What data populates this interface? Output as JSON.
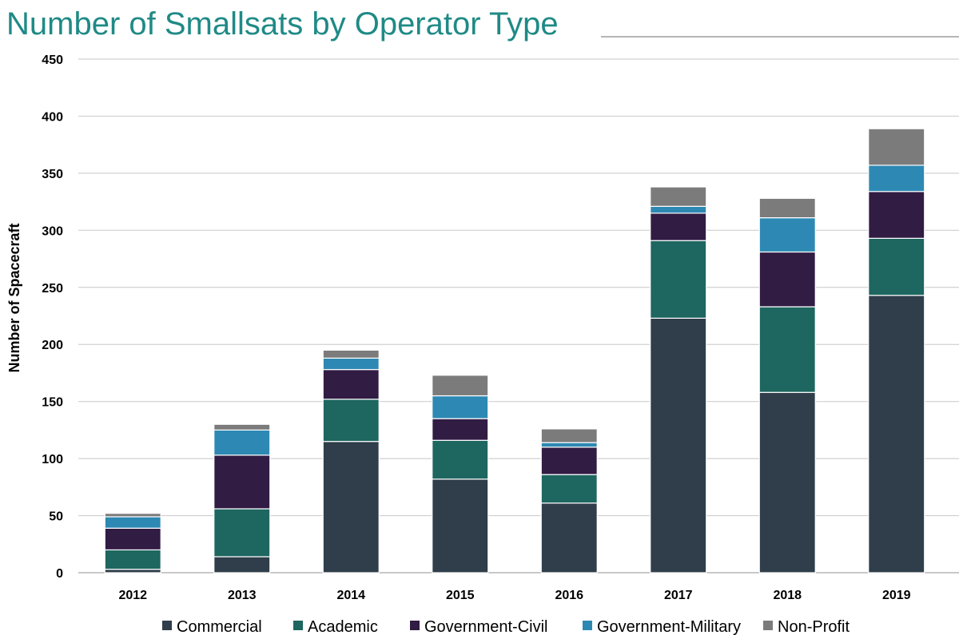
{
  "title": "Number of Smallsats by Operator Type",
  "chart_data": {
    "type": "bar",
    "stacked": true,
    "title": "Number of Smallsats by Operator Type",
    "xlabel": "",
    "ylabel": "Number of Spacecraft",
    "ylim": [
      0,
      450
    ],
    "yticks": [
      0,
      50,
      100,
      150,
      200,
      250,
      300,
      350,
      400,
      450
    ],
    "grid": true,
    "legend_position": "bottom",
    "categories": [
      "2012",
      "2013",
      "2014",
      "2015",
      "2016",
      "2017",
      "2018",
      "2019"
    ],
    "series": [
      {
        "name": "Commercial",
        "color": "#2f3e4a",
        "values": [
          3,
          14,
          115,
          82,
          61,
          223,
          158,
          243
        ]
      },
      {
        "name": "Academic",
        "color": "#1e6660",
        "values": [
          17,
          42,
          37,
          34,
          25,
          68,
          75,
          50
        ]
      },
      {
        "name": "Government-Civil",
        "color": "#311c44",
        "values": [
          19,
          47,
          26,
          19,
          24,
          24,
          48,
          41
        ]
      },
      {
        "name": "Government-Military",
        "color": "#2d89b3",
        "values": [
          10,
          22,
          10,
          20,
          4,
          6,
          30,
          23
        ]
      },
      {
        "name": "Non-Profit",
        "color": "#7b7b7b",
        "values": [
          3,
          5,
          7,
          18,
          12,
          17,
          17,
          32
        ]
      }
    ]
  }
}
